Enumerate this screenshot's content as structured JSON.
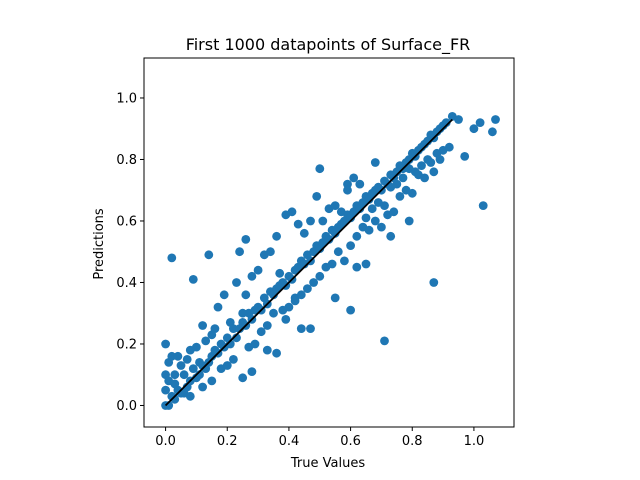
{
  "chart_data": {
    "type": "scatter",
    "title": "First 1000 datapoints of Surface_FR",
    "xlabel": "True Values",
    "ylabel": "Predictions",
    "xlim": [
      -0.07,
      1.13
    ],
    "ylim": [
      -0.07,
      1.13
    ],
    "xticks": [
      0.0,
      0.2,
      0.4,
      0.6,
      0.8,
      1.0
    ],
    "yticks": [
      0.0,
      0.2,
      0.4,
      0.6,
      0.8,
      1.0
    ],
    "xtick_labels": [
      "0.0",
      "0.2",
      "0.4",
      "0.6",
      "0.8",
      "1.0"
    ],
    "ytick_labels": [
      "0.0",
      "0.2",
      "0.4",
      "0.6",
      "0.8",
      "1.0"
    ],
    "grid": false,
    "point_color": "#1f77b4",
    "reference_line": {
      "x": [
        0.0,
        0.93
      ],
      "y": [
        0.0,
        0.93
      ],
      "color": "#000000"
    },
    "series": [
      {
        "x": [
          0.0,
          0.0,
          0.0,
          0.0,
          0.01,
          0.01,
          0.01,
          0.02,
          0.02,
          0.03,
          0.03,
          0.03,
          0.04,
          0.04,
          0.05,
          0.05,
          0.06,
          0.06,
          0.07,
          0.07,
          0.08,
          0.08,
          0.09,
          0.09,
          0.1,
          0.1,
          0.11,
          0.11,
          0.12,
          0.12,
          0.13,
          0.13,
          0.14,
          0.14,
          0.15,
          0.15,
          0.16,
          0.16,
          0.17,
          0.17,
          0.18,
          0.18,
          0.19,
          0.19,
          0.2,
          0.2,
          0.21,
          0.21,
          0.22,
          0.22,
          0.23,
          0.23,
          0.24,
          0.24,
          0.25,
          0.25,
          0.26,
          0.26,
          0.27,
          0.27,
          0.28,
          0.28,
          0.29,
          0.29,
          0.3,
          0.3,
          0.31,
          0.31,
          0.32,
          0.32,
          0.33,
          0.33,
          0.34,
          0.34,
          0.35,
          0.35,
          0.36,
          0.36,
          0.37,
          0.37,
          0.38,
          0.38,
          0.39,
          0.39,
          0.4,
          0.4,
          0.41,
          0.41,
          0.42,
          0.42,
          0.43,
          0.43,
          0.44,
          0.44,
          0.45,
          0.45,
          0.46,
          0.46,
          0.47,
          0.47,
          0.48,
          0.48,
          0.49,
          0.49,
          0.5,
          0.5,
          0.51,
          0.51,
          0.52,
          0.52,
          0.53,
          0.53,
          0.54,
          0.54,
          0.55,
          0.55,
          0.56,
          0.56,
          0.57,
          0.57,
          0.58,
          0.58,
          0.59,
          0.59,
          0.6,
          0.6,
          0.61,
          0.61,
          0.62,
          0.62,
          0.63,
          0.63,
          0.64,
          0.64,
          0.65,
          0.65,
          0.66,
          0.66,
          0.67,
          0.67,
          0.68,
          0.68,
          0.69,
          0.69,
          0.7,
          0.7,
          0.71,
          0.71,
          0.72,
          0.72,
          0.73,
          0.73,
          0.74,
          0.74,
          0.75,
          0.75,
          0.76,
          0.76,
          0.77,
          0.77,
          0.78,
          0.78,
          0.79,
          0.79,
          0.8,
          0.8,
          0.81,
          0.81,
          0.82,
          0.82,
          0.83,
          0.83,
          0.84,
          0.84,
          0.85,
          0.85,
          0.86,
          0.86,
          0.87,
          0.87,
          0.88,
          0.88,
          0.89,
          0.89,
          0.9,
          0.9,
          0.91,
          0.92,
          0.93,
          0.95,
          0.97,
          1.0,
          1.02,
          1.07,
          1.06,
          1.03,
          0.71,
          0.87,
          0.6,
          0.02,
          0.5,
          0.26,
          0.39,
          0.42,
          0.44,
          0.55,
          0.62,
          0.65,
          0.73,
          0.79,
          0.68,
          0.59,
          0.47,
          0.33,
          0.28,
          0.36,
          0.25,
          0.15,
          0.12,
          0.08
        ],
        "y": [
          0.0,
          0.05,
          0.1,
          0.2,
          0.0,
          0.08,
          0.14,
          0.03,
          0.16,
          0.02,
          0.1,
          0.07,
          0.05,
          0.16,
          0.04,
          0.13,
          0.1,
          0.04,
          0.06,
          0.15,
          0.08,
          0.03,
          0.12,
          0.41,
          0.09,
          0.19,
          0.1,
          0.14,
          0.13,
          0.26,
          0.12,
          0.21,
          0.14,
          0.49,
          0.16,
          0.08,
          0.18,
          0.25,
          0.17,
          0.32,
          0.2,
          0.12,
          0.19,
          0.36,
          0.22,
          0.13,
          0.2,
          0.27,
          0.25,
          0.15,
          0.22,
          0.4,
          0.25,
          0.5,
          0.27,
          0.09,
          0.26,
          0.36,
          0.3,
          0.19,
          0.28,
          0.42,
          0.31,
          0.2,
          0.32,
          0.44,
          0.31,
          0.24,
          0.35,
          0.49,
          0.33,
          0.26,
          0.37,
          0.5,
          0.36,
          0.3,
          0.38,
          0.55,
          0.39,
          0.43,
          0.4,
          0.31,
          0.39,
          0.62,
          0.42,
          0.32,
          0.41,
          0.63,
          0.44,
          0.35,
          0.45,
          0.59,
          0.47,
          0.36,
          0.46,
          0.56,
          0.49,
          0.38,
          0.47,
          0.6,
          0.5,
          0.4,
          0.52,
          0.68,
          0.51,
          0.42,
          0.53,
          0.6,
          0.55,
          0.45,
          0.54,
          0.64,
          0.57,
          0.46,
          0.56,
          0.65,
          0.58,
          0.5,
          0.59,
          0.63,
          0.6,
          0.47,
          0.62,
          0.72,
          0.61,
          0.52,
          0.63,
          0.74,
          0.65,
          0.55,
          0.64,
          0.72,
          0.66,
          0.58,
          0.68,
          0.61,
          0.67,
          0.57,
          0.69,
          0.64,
          0.7,
          0.6,
          0.71,
          0.66,
          0.7,
          0.58,
          0.73,
          0.65,
          0.72,
          0.62,
          0.75,
          0.71,
          0.74,
          0.63,
          0.76,
          0.72,
          0.78,
          0.68,
          0.77,
          0.74,
          0.79,
          0.7,
          0.8,
          0.77,
          0.82,
          0.69,
          0.81,
          0.76,
          0.83,
          0.75,
          0.84,
          0.78,
          0.85,
          0.74,
          0.86,
          0.8,
          0.88,
          0.79,
          0.87,
          0.76,
          0.89,
          0.82,
          0.9,
          0.8,
          0.91,
          0.83,
          0.92,
          0.84,
          0.94,
          0.93,
          0.81,
          0.9,
          0.92,
          0.93,
          0.89,
          0.65,
          0.21,
          0.4,
          0.31,
          0.48,
          0.77,
          0.54,
          0.28,
          0.34,
          0.25,
          0.35,
          0.45,
          0.46,
          0.55,
          0.6,
          0.79,
          0.7,
          0.25,
          0.18,
          0.11,
          0.17,
          0.3,
          0.23,
          0.06,
          0.18
        ]
      }
    ]
  }
}
